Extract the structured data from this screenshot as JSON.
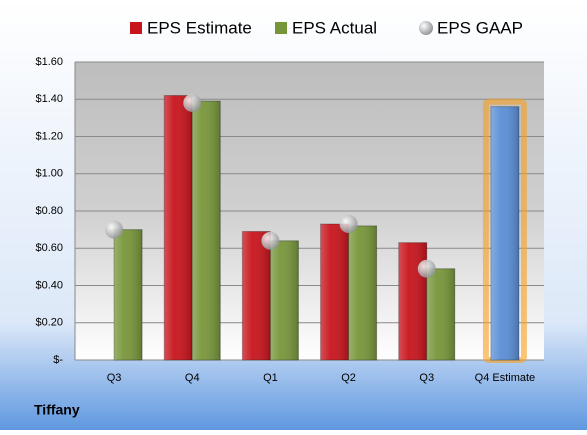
{
  "chart_data": {
    "type": "bar",
    "footer": "Tiffany",
    "categories": [
      "Q3",
      "Q4",
      "Q1",
      "Q2",
      "Q3",
      "Q4 Estimate"
    ],
    "series": [
      {
        "name": "EPS Estimate",
        "color": "#c8141c",
        "values": [
          null,
          1.42,
          0.69,
          0.73,
          0.63,
          1.36
        ],
        "point_colors": [
          null,
          null,
          null,
          null,
          null,
          "#5b8fd6"
        ]
      },
      {
        "name": "EPS Actual",
        "color": "#77963a",
        "values": [
          0.7,
          1.39,
          0.64,
          0.72,
          0.49,
          null
        ]
      },
      {
        "name": "EPS GAAP",
        "color": "#a9abae",
        "type": "scatter",
        "values": [
          0.7,
          1.38,
          0.64,
          0.73,
          0.49,
          null
        ]
      }
    ],
    "ylim": [
      0,
      1.6
    ],
    "yticks": [
      {
        "value": 0,
        "label": "$-"
      },
      {
        "value": 0.2,
        "label": "$0.20"
      },
      {
        "value": 0.4,
        "label": "$0.40"
      },
      {
        "value": 0.6,
        "label": "$0.60"
      },
      {
        "value": 0.8,
        "label": "$0.80"
      },
      {
        "value": 1.0,
        "label": "$1.00"
      },
      {
        "value": 1.2,
        "label": "$1.20"
      },
      {
        "value": 1.4,
        "label": "$1.40"
      },
      {
        "value": 1.6,
        "label": "$1.60"
      }
    ],
    "grid": true,
    "legend": "top"
  }
}
